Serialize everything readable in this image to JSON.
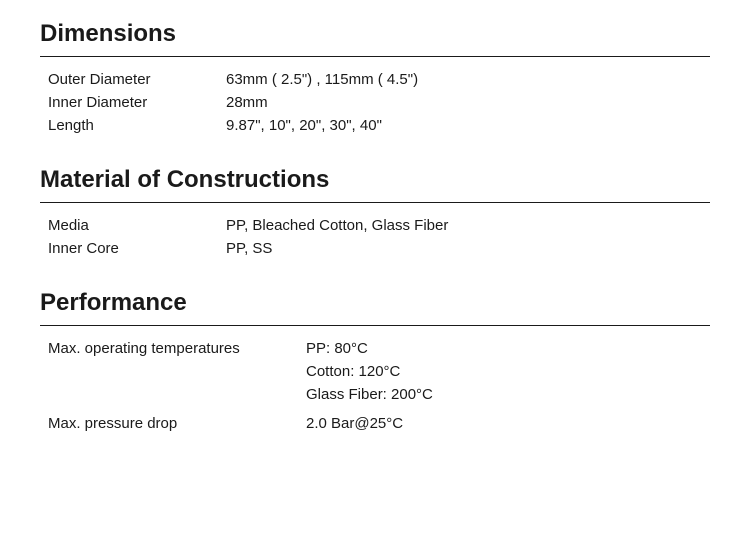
{
  "sections": {
    "dimensions": {
      "title": "Dimensions",
      "rows": [
        {
          "label": "Outer Diameter",
          "value": "63mm ( 2.5\") , 115mm ( 4.5\")"
        },
        {
          "label": "Inner Diameter",
          "value": "28mm"
        },
        {
          "label": "Length",
          "value": "9.87\", 10\", 20\", 30\", 40\""
        }
      ]
    },
    "material": {
      "title": "Material of Constructions",
      "rows": [
        {
          "label": "Media",
          "value": "PP, Bleached Cotton, Glass Fiber"
        },
        {
          "label": "Inner Core",
          "value": "PP, SS"
        }
      ]
    },
    "performance": {
      "title": "Performance",
      "rows": [
        {
          "label": "Max. operating temperatures",
          "values": [
            "PP:  80°C",
            "Cotton:  120°C",
            "Glass Fiber:  200°C"
          ]
        },
        {
          "label": "Max. pressure drop",
          "value": "2.0 Bar@25°C"
        }
      ]
    }
  },
  "layout": {
    "label_width_narrow": 178,
    "label_width_wide": 258
  },
  "colors": {
    "text": "#1a1a1a",
    "background": "#ffffff",
    "border": "#1a1a1a"
  },
  "typography": {
    "title_fontsize": 24,
    "title_fontweight": 700,
    "body_fontsize": 15,
    "body_fontweight": 400
  }
}
